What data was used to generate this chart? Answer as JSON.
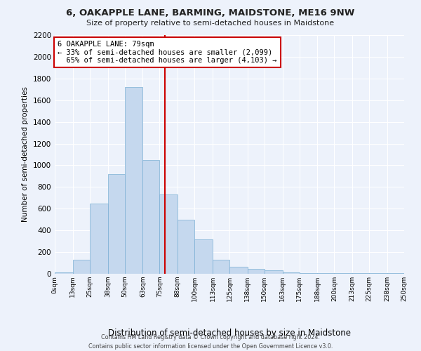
{
  "title": "6, OAKAPPLE LANE, BARMING, MAIDSTONE, ME16 9NW",
  "subtitle": "Size of property relative to semi-detached houses in Maidstone",
  "xlabel": "Distribution of semi-detached houses by size in Maidstone",
  "ylabel": "Number of semi-detached properties",
  "footer_line1": "Contains HM Land Registry data © Crown copyright and database right 2024.",
  "footer_line2": "Contains public sector information licensed under the Open Government Licence v3.0.",
  "property_label": "6 OAKAPPLE LANE: 79sqm",
  "pct_smaller": "33%",
  "n_smaller": "2,099",
  "pct_larger": "65%",
  "n_larger": "4,103",
  "property_size": 79,
  "bar_color": "#c5d8ee",
  "bar_edge_color": "#7bafd4",
  "highlight_color": "#cc0000",
  "annotation_box_color": "#ffffff",
  "annotation_box_edge": "#cc0000",
  "background_color": "#edf2fb",
  "grid_color": "#ffffff",
  "bin_edges": [
    0,
    13,
    25,
    38,
    50,
    63,
    75,
    88,
    100,
    113,
    125,
    138,
    150,
    163,
    175,
    188,
    200,
    213,
    225,
    238,
    250
  ],
  "bin_labels": [
    "0sqm",
    "13sqm",
    "25sqm",
    "38sqm",
    "50sqm",
    "63sqm",
    "75sqm",
    "88sqm",
    "100sqm",
    "113sqm",
    "125sqm",
    "138sqm",
    "150sqm",
    "163sqm",
    "175sqm",
    "188sqm",
    "200sqm",
    "213sqm",
    "225sqm",
    "238sqm",
    "250sqm"
  ],
  "bar_heights": [
    10,
    130,
    650,
    920,
    1720,
    1050,
    730,
    500,
    315,
    130,
    65,
    45,
    35,
    10,
    5,
    5,
    5,
    5,
    5,
    5
  ],
  "ylim": [
    0,
    2200
  ],
  "yticks": [
    0,
    200,
    400,
    600,
    800,
    1000,
    1200,
    1400,
    1600,
    1800,
    2000,
    2200
  ]
}
